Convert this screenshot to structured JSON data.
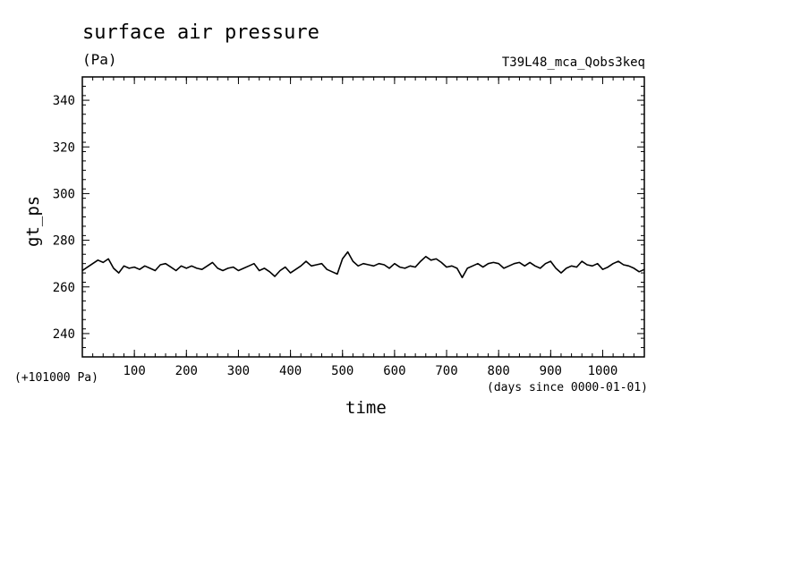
{
  "chart_data": {
    "type": "line",
    "title": "surface air pressure",
    "units_label": "(Pa)",
    "experiment_label": "T39L48_mca_Qobs3keq",
    "xlabel": "time",
    "x_units_label": "(days since 0000-01-01)",
    "ylabel": "gt_ps",
    "y_offset_label": "(+101000 Pa)",
    "xlim": [
      0,
      1080
    ],
    "ylim": [
      230,
      350
    ],
    "x_ticks": [
      100,
      200,
      300,
      400,
      500,
      600,
      700,
      800,
      900,
      1000
    ],
    "y_ticks": [
      240,
      260,
      280,
      300,
      320,
      340
    ],
    "x_tick_labels": [
      "100",
      "200",
      "300",
      "400",
      "500",
      "600",
      "700",
      "800",
      "900",
      "1000"
    ],
    "y_tick_labels": [
      "240",
      "260",
      "280",
      "300",
      "320",
      "340"
    ],
    "grid": false,
    "series": [
      {
        "color": "#000000",
        "x": [
          0,
          10,
          20,
          30,
          40,
          50,
          60,
          70,
          80,
          90,
          100,
          110,
          120,
          130,
          140,
          150,
          160,
          170,
          180,
          190,
          200,
          210,
          220,
          230,
          240,
          250,
          260,
          270,
          280,
          290,
          300,
          310,
          320,
          330,
          340,
          350,
          360,
          370,
          380,
          390,
          400,
          410,
          420,
          430,
          440,
          450,
          460,
          470,
          480,
          490,
          500,
          510,
          520,
          530,
          540,
          550,
          560,
          570,
          580,
          590,
          600,
          610,
          620,
          630,
          640,
          650,
          660,
          670,
          680,
          690,
          700,
          710,
          720,
          730,
          740,
          750,
          760,
          770,
          780,
          790,
          800,
          810,
          820,
          830,
          840,
          850,
          860,
          870,
          880,
          890,
          900,
          910,
          920,
          930,
          940,
          950,
          960,
          970,
          980,
          990,
          1000,
          1010,
          1020,
          1030,
          1040,
          1050,
          1060,
          1070,
          1080
        ],
        "values": [
          267,
          268.5,
          270,
          271.5,
          270.5,
          272,
          268,
          266,
          269,
          268,
          268.5,
          267.5,
          269,
          268,
          267,
          269.5,
          270,
          268.5,
          267,
          269,
          268,
          269,
          268,
          267.5,
          269,
          270.5,
          268,
          267,
          268,
          268.5,
          267,
          268,
          269,
          270,
          267,
          268,
          266.5,
          264.5,
          267,
          268.5,
          266,
          267.5,
          269,
          271,
          269,
          269.5,
          270,
          267.5,
          266.5,
          265.5,
          272,
          275,
          271,
          269,
          270,
          269.5,
          269,
          270,
          269.5,
          268,
          270,
          268.5,
          268,
          269,
          268.5,
          271,
          273,
          271.5,
          272,
          270.5,
          268.5,
          269,
          268,
          264,
          268,
          269,
          270,
          268.5,
          270,
          270.5,
          270,
          268,
          269,
          270,
          270.5,
          269,
          270.5,
          269,
          268,
          270,
          271,
          268,
          266,
          268,
          269,
          268.5,
          271,
          269.5,
          269,
          270,
          267.5,
          268.5,
          270,
          271,
          269.5,
          269,
          268,
          266.5,
          267.5
        ]
      }
    ]
  }
}
